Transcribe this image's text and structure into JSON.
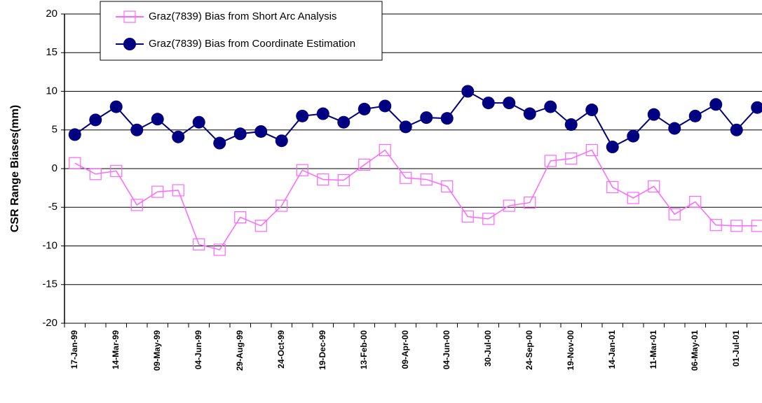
{
  "chart_data": {
    "type": "line",
    "y_label": "CSR Range Biases(mm)",
    "categories": [
      "17-Jan-99",
      null,
      "14-Mar-99",
      null,
      "09-May-99",
      null,
      "04-Jun-99",
      null,
      "29-Aug-99",
      null,
      "24-Oct-99",
      null,
      "19-Dec-99",
      null,
      "13-Feb-00",
      null,
      "09-Apr-00",
      null,
      "04-Jun-00",
      null,
      "30-Jul-00",
      null,
      "24-Sep-00",
      null,
      "19-Nov-00",
      null,
      "14-Jan-01",
      null,
      "11-Mar-01",
      null,
      "06-May-01",
      null,
      "01-Jul-01",
      null
    ],
    "series": [
      {
        "name": "Graz(7839) Bias from Short Arc Analysis",
        "color": "#ff66ff",
        "marker": "square",
        "values": [
          0.7,
          -0.7,
          -0.3,
          -4.7,
          -3.0,
          -2.8,
          -9.8,
          -10.5,
          -6.3,
          -7.4,
          -4.8,
          -0.2,
          -1.4,
          -1.5,
          0.5,
          2.4,
          -1.2,
          -1.4,
          -2.3,
          -6.2,
          -6.5,
          -4.8,
          -4.4,
          1.0,
          1.3,
          2.4,
          -2.4,
          -3.8,
          -2.3,
          -5.9,
          -4.3,
          -7.3,
          -7.4,
          -7.4
        ]
      },
      {
        "name": "Graz(7839) Bias from Coordinate Estimation",
        "color": "#000080",
        "marker": "circle",
        "values": [
          4.4,
          6.3,
          8.0,
          5.0,
          6.4,
          4.1,
          6.0,
          3.3,
          4.5,
          4.8,
          3.6,
          6.8,
          7.1,
          6.0,
          7.7,
          8.1,
          5.4,
          6.6,
          6.5,
          10.0,
          8.5,
          8.5,
          7.1,
          8.0,
          5.7,
          7.6,
          2.8,
          4.2,
          7.0,
          5.2,
          6.8,
          8.3,
          5.0,
          7.9
        ]
      }
    ],
    "ylim": [
      -20,
      20
    ],
    "yticks": [
      -20,
      -15,
      -10,
      -5,
      0,
      5,
      10,
      15,
      20
    ],
    "grid": true,
    "legend": "top-left"
  }
}
